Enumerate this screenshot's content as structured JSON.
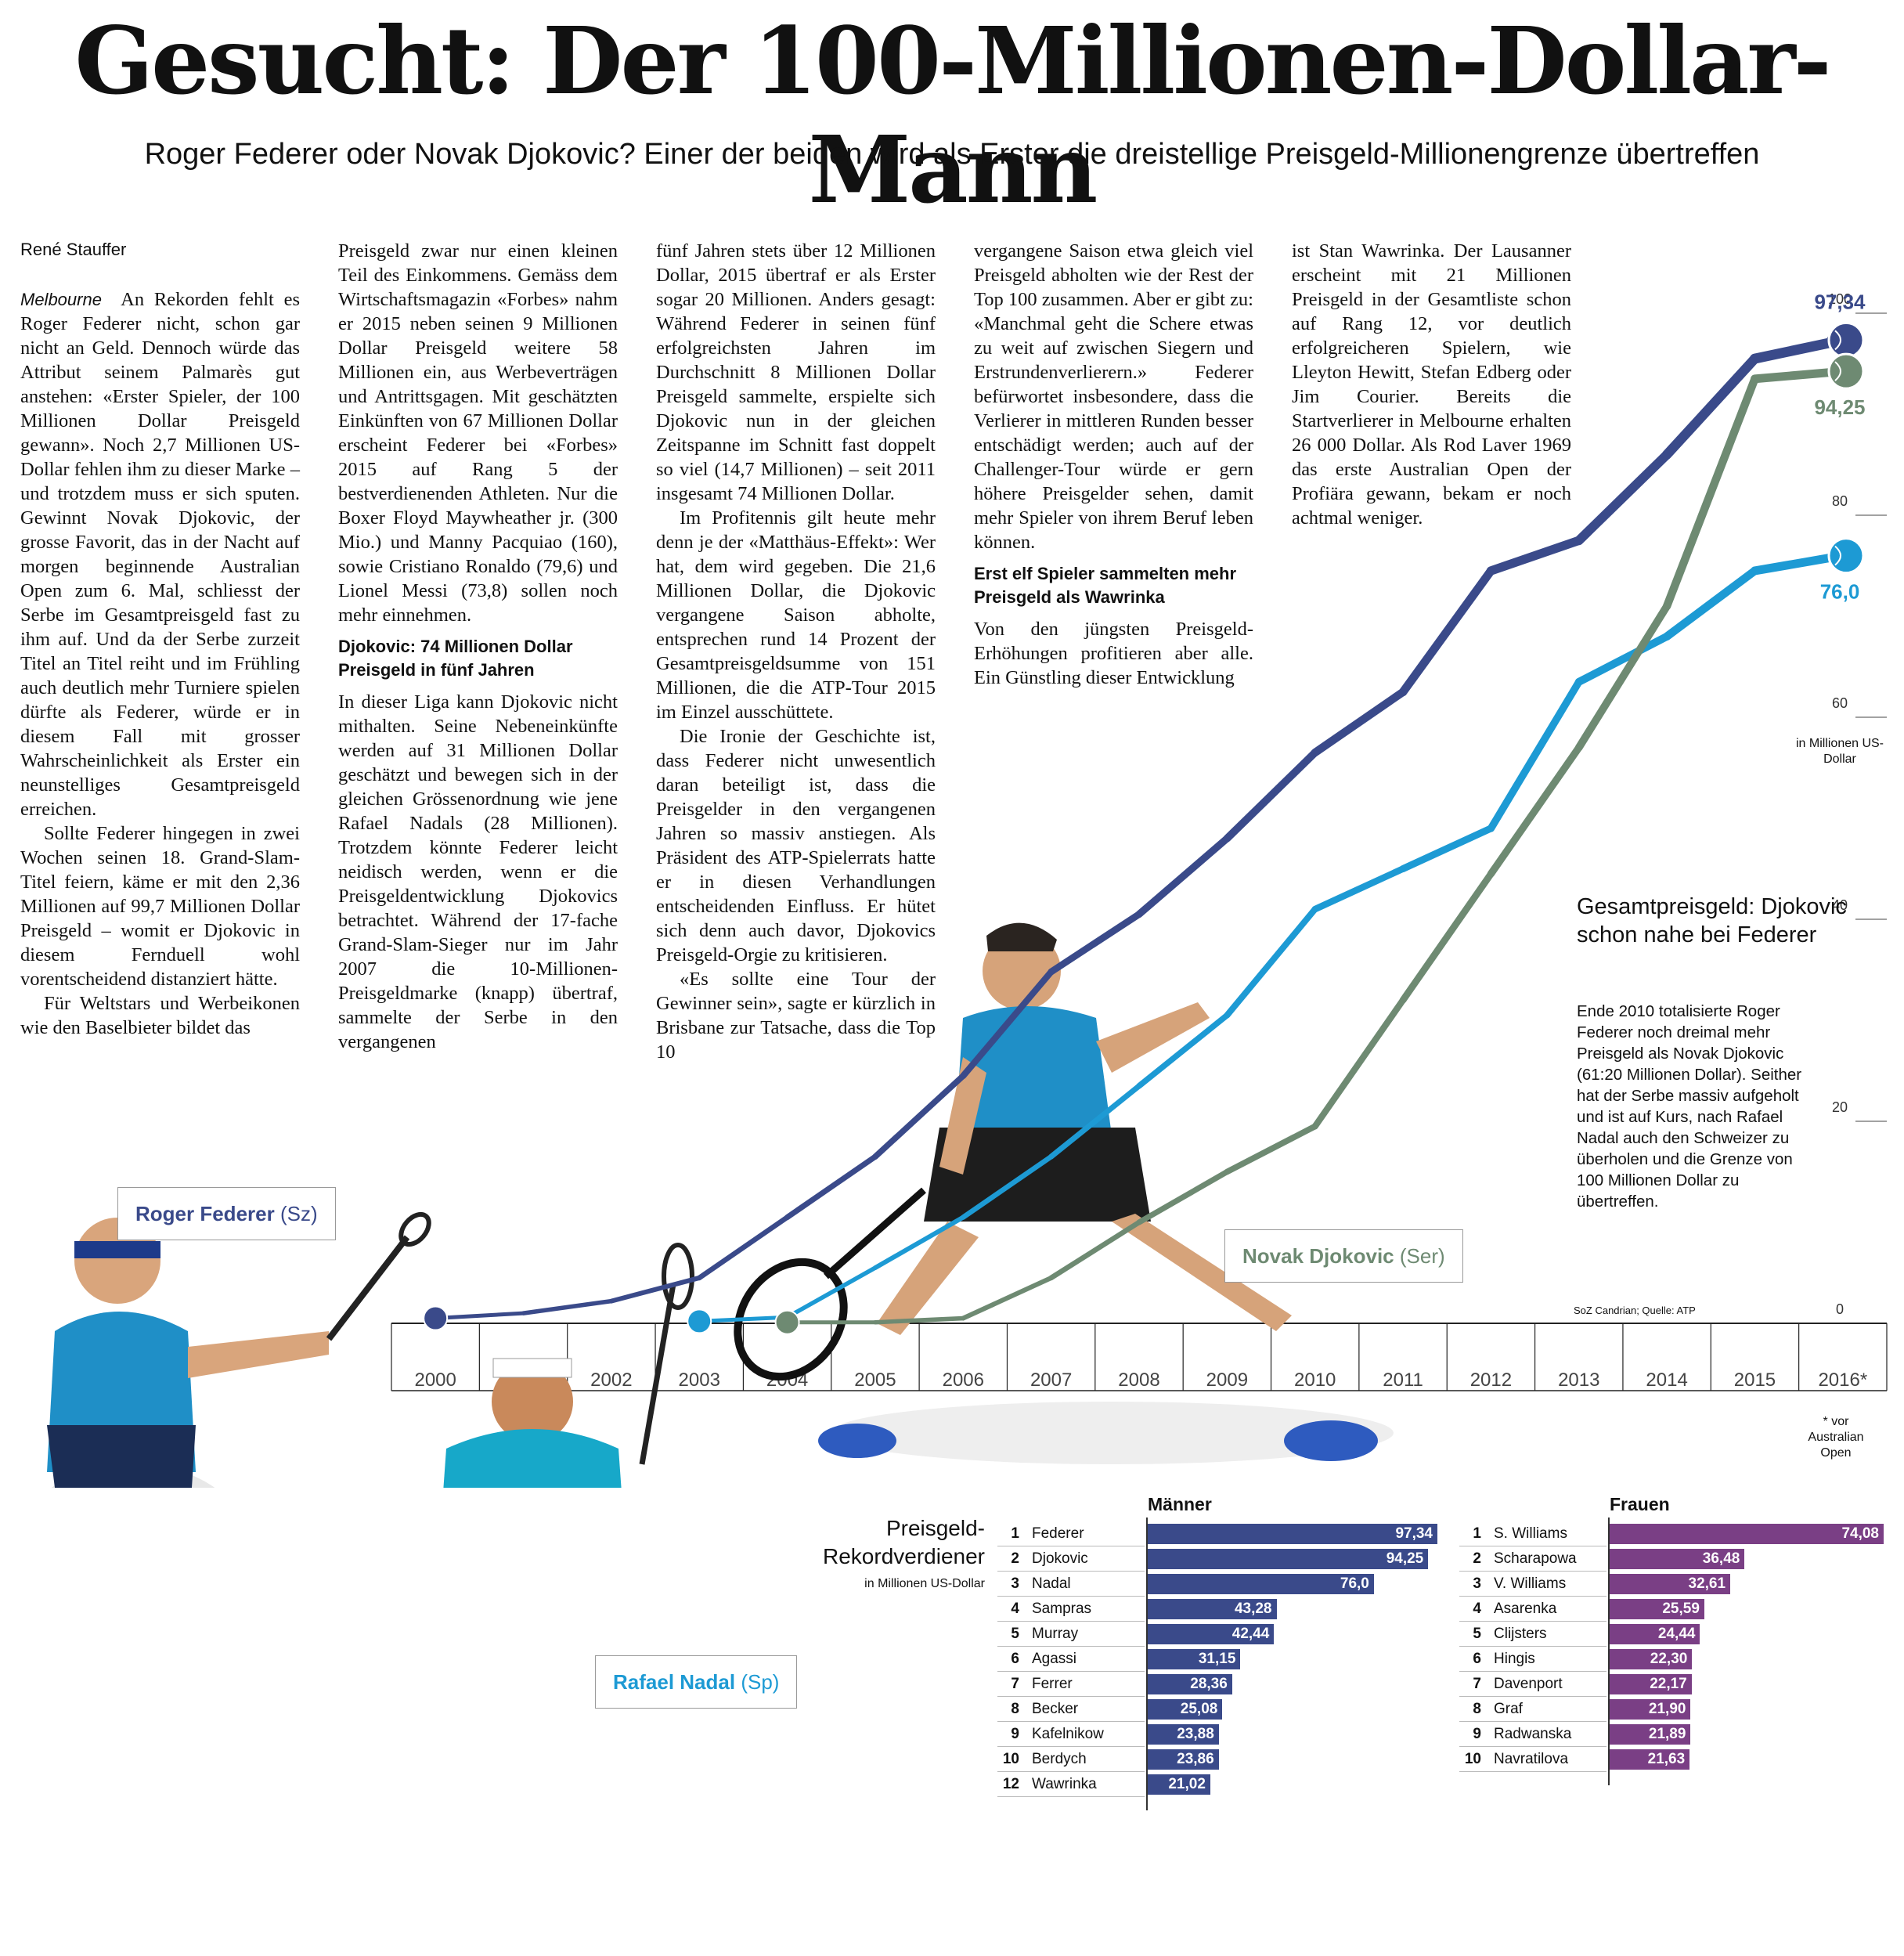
{
  "headline": "Gesucht: Der 100-Millionen-Dollar-Mann",
  "subhead": "Roger Federer oder Novak Djokovic? Einer der beiden wird als Erster die dreistellige Preisgeld-Millionengrenze übertreffen",
  "author": "René Stauffer",
  "article": {
    "dateline": "Melbourne",
    "col1": [
      "An Rekorden fehlt es Roger Federer nicht, schon gar nicht an Geld. Dennoch würde das Attribut seinem Palmarès gut anstehen: «Erster Spieler, der 100 Millionen Dollar Preisgeld gewann». Noch 2,7 Millionen US-Dollar fehlen ihm zu dieser Marke – und trotzdem muss er sich sputen. Gewinnt Novak Djokovic, der grosse Favorit, das in der Nacht auf morgen beginnende Australian Open zum 6. Mal, schliesst der Serbe im Gesamtpreisgeld fast zu ihm auf. Und da der Serbe zurzeit Titel an Titel reiht und im Frühling auch deutlich mehr Turniere spielen dürfte als Federer, würde er in diesem Fall mit grosser Wahrscheinlichkeit als Erster ein neunstelliges Gesamtpreisgeld erreichen.",
      "Sollte Federer hingegen in zwei Wochen seinen 18. Grand-Slam-Titel feiern, käme er mit den 2,36 Millionen auf 99,7 Millionen Dollar Preisgeld – womit er Djokovic in diesem Fernduell wohl vorentscheidend distanziert hätte.",
      "Für Weltstars und Werbeikonen wie den Baselbieter bildet das"
    ],
    "col2": [
      "Preisgeld zwar nur einen kleinen Teil des Einkommens. Gemäss dem Wirtschaftsmagazin «Forbes» nahm er 2015 neben seinen 9 Millionen Dollar Preisgeld weitere 58 Millionen ein, aus Werbeverträgen und Antrittsgagen. Mit geschätzten Einkünften von 67 Millionen Dollar erscheint Federer bei «Forbes» 2015 auf Rang 5 der bestverdienenden Athleten. Nur die Boxer Floyd Maywheather jr. (300 Mio.) und Manny Pacquiao (160), sowie Cristiano Ronaldo (79,6) und Lionel Messi (73,8) sollen noch mehr einnehmen."
    ],
    "col2_heading": "Djokovic: 74 Millionen Dollar Preisgeld in fünf Jahren",
    "col2b": [
      "In dieser Liga kann Djokovic nicht mithalten. Seine Nebeneinkünfte werden auf 31 Millionen Dollar geschätzt und bewegen sich in der gleichen Grössenordnung wie jene Rafael Nadals (28 Millionen). Trotzdem könnte Federer leicht neidisch werden, wenn er die Preisgeldentwicklung Djokovics betrachtet. Während der 17-fache Grand-Slam-Sieger nur im Jahr 2007 die 10-Millionen-Preisgeldmarke (knapp) übertraf, sammelte der Serbe in den vergangenen"
    ],
    "col3": [
      "fünf Jahren stets über 12 Millionen Dollar, 2015 übertraf er als Erster sogar 20 Millionen. Anders gesagt: Während Federer in seinen fünf erfolgreichsten Jahren im Durchschnitt 8 Millionen Dollar Preisgeld sammelte, erspielte sich Djokovic nun in der gleichen Zeitspanne im Schnitt fast doppelt so viel (14,7 Millionen) – seit 2011 insgesamt 74 Millionen Dollar.",
      "Im Profitennis gilt heute mehr denn je der «Matthäus-Effekt»: Wer hat, dem wird gegeben. Die 21,6 Millionen Dollar, die Djokovic vergangene Saison abholte, entsprechen rund 14 Prozent der Gesamtpreisgeldsumme von 151 Millionen, die die ATP-Tour 2015 im Einzel ausschüttete.",
      "Die Ironie der Geschichte ist, dass Federer nicht unwesentlich daran beteiligt ist, dass die Preisgelder in den vergangenen Jahren so massiv anstiegen. Als Präsident des ATP-Spielerrats hatte er in diesen Verhandlungen entscheidenden Einfluss. Er hütet sich denn auch davor, Djokovics Preisgeld-Orgie zu kritisieren.",
      "«Es sollte eine Tour der Gewinner sein», sagte er kürzlich in Brisbane zur Tatsache, dass die Top 10"
    ],
    "col4": [
      "vergangene Saison etwa gleich viel Preisgeld abholten wie der Rest der Top 100 zusammen. Aber er gibt zu: «Manchmal geht die Schere etwas zu weit auf zwischen Siegern und Erstrundenverlierern.» Federer befürwortet insbesondere, dass die Verlierer in mittleren Runden besser entschädigt werden; auch auf der Challenger-Tour würde er gern höhere Preisgelder sehen, damit mehr Spieler von ihrem Beruf leben können."
    ],
    "col4_heading": "Erst elf Spieler sammelten mehr Preisgeld als Wawrinka",
    "col4b": [
      "Von den jüngsten Preisgeld-Erhöhungen profitieren aber alle. Ein Günstling dieser Entwicklung"
    ],
    "col5": [
      "ist Stan Wawrinka. Der Lausanner erscheint mit 21 Millionen Preisgeld in der Gesamtliste schon auf Rang 12, vor deutlich erfolgreicheren Spielern, wie Lleyton Hewitt, Stefan Edberg oder Jim Courier. Bereits die Startverlierer in Melbourne erhalten 26 000 Dollar. Als Rod Laver 1969 das erste Australian Open der Profiära gewann, bekam er noch achtmal weniger."
    ]
  },
  "chart_data": [
    {
      "type": "line",
      "title": "Gesamtpreisgeld: Djokovic schon nahe bei Federer",
      "description": "Ende 2010 totalisierte Roger Federer noch dreimal mehr Preisgeld als Novak Djokovic (61:20 Millionen Dollar). Seither hat der Serbe massiv aufgeholt und ist auf Kurs, nach Rafael Nadal auch den Schweizer zu überholen und die Grenze von 100 Millionen Dollar zu übertreffen.",
      "x": [
        "2000",
        "2001",
        "2002",
        "2003",
        "2004",
        "2005",
        "2006",
        "2007",
        "2008",
        "2009",
        "2010",
        "2011",
        "2012",
        "2013",
        "2014",
        "2015",
        "2016*"
      ],
      "ylabel": "in Millionen US-Dollar",
      "yticks": [
        0,
        20,
        40,
        60,
        80,
        100
      ],
      "ylim": [
        0,
        100
      ],
      "footnote": "* vor Australian Open",
      "source": "SoZ Candrian; Quelle: ATP",
      "series": [
        {
          "name": "Roger Federer",
          "nationality": "(Sz)",
          "color": "#3a4a8a",
          "start": 0,
          "end": 16,
          "values": [
            0.5,
            1.0,
            2.2,
            4.5,
            10.5,
            16.5,
            24.5,
            34.8,
            40.5,
            48.0,
            56.5,
            62.5,
            74.5,
            77.5,
            86.0,
            95.5,
            97.34
          ],
          "end_label": "97,34"
        },
        {
          "name": "Rafael Nadal",
          "nationality": "(Sp)",
          "color": "#1d9ad4",
          "start": 3,
          "end": 16,
          "values": [
            null,
            null,
            null,
            0.2,
            0.6,
            5.5,
            10.5,
            16.5,
            23.5,
            30.5,
            41.0,
            45.0,
            49.0,
            63.5,
            68.0,
            74.5,
            76.0
          ],
          "end_label": "76,0"
        },
        {
          "name": "Novak Djokovic",
          "nationality": "(Ser)",
          "color": "#6e8a72",
          "start": 4,
          "end": 16,
          "values": [
            null,
            null,
            null,
            null,
            0.1,
            0.1,
            0.5,
            4.5,
            10.0,
            15.0,
            19.5,
            32.0,
            44.5,
            57.0,
            71.0,
            93.5,
            94.25
          ],
          "end_label": "94,25"
        }
      ]
    },
    {
      "type": "bar",
      "title": "Preisgeld-Rekordverdiener",
      "unit": "in Millionen US-Dollar",
      "groups": [
        {
          "name": "Männer",
          "color": "#3a4a8a",
          "rows": [
            {
              "rank": "1",
              "name": "Federer",
              "value": 97.34,
              "label": "97,34"
            },
            {
              "rank": "2",
              "name": "Djokovic",
              "value": 94.25,
              "label": "94,25"
            },
            {
              "rank": "3",
              "name": "Nadal",
              "value": 76.0,
              "label": "76,0"
            },
            {
              "rank": "4",
              "name": "Sampras",
              "value": 43.28,
              "label": "43,28"
            },
            {
              "rank": "5",
              "name": "Murray",
              "value": 42.44,
              "label": "42,44"
            },
            {
              "rank": "6",
              "name": "Agassi",
              "value": 31.15,
              "label": "31,15"
            },
            {
              "rank": "7",
              "name": "Ferrer",
              "value": 28.36,
              "label": "28,36"
            },
            {
              "rank": "8",
              "name": "Becker",
              "value": 25.08,
              "label": "25,08"
            },
            {
              "rank": "9",
              "name": "Kafelnikow",
              "value": 23.88,
              "label": "23,88"
            },
            {
              "rank": "10",
              "name": "Berdych",
              "value": 23.86,
              "label": "23,86"
            },
            {
              "rank": "12",
              "name": "Wawrinka",
              "value": 21.02,
              "label": "21,02"
            }
          ]
        },
        {
          "name": "Frauen",
          "color": "#7a3f85",
          "rows": [
            {
              "rank": "1",
              "name": "S. Williams",
              "value": 74.08,
              "label": "74,08"
            },
            {
              "rank": "2",
              "name": "Scharapowa",
              "value": 36.48,
              "label": "36,48"
            },
            {
              "rank": "3",
              "name": "V. Williams",
              "value": 32.61,
              "label": "32,61"
            },
            {
              "rank": "4",
              "name": "Asarenka",
              "value": 25.59,
              "label": "25,59"
            },
            {
              "rank": "5",
              "name": "Clijsters",
              "value": 24.44,
              "label": "24,44"
            },
            {
              "rank": "6",
              "name": "Hingis",
              "value": 22.3,
              "label": "22,30"
            },
            {
              "rank": "7",
              "name": "Davenport",
              "value": 22.17,
              "label": "22,17"
            },
            {
              "rank": "8",
              "name": "Graf",
              "value": 21.9,
              "label": "21,90"
            },
            {
              "rank": "9",
              "name": "Radwanska",
              "value": 21.89,
              "label": "21,89"
            },
            {
              "rank": "10",
              "name": "Navratilova",
              "value": 21.63,
              "label": "21,63"
            }
          ]
        }
      ]
    }
  ],
  "players": {
    "federer": {
      "name": "Roger Federer",
      "nat": "(Sz)"
    },
    "nadal": {
      "name": "Rafael Nadal",
      "nat": "(Sp)"
    },
    "djokovic": {
      "name": "Novak Djokovic",
      "nat": "(Ser)"
    }
  }
}
